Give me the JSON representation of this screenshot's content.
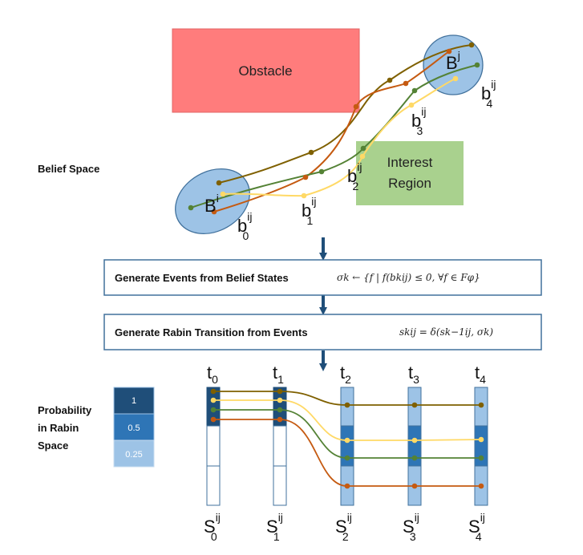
{
  "colors": {
    "obstacle": "#ff7c7c",
    "interest": "#a9d18e",
    "belief_ellipse": "#9dc3e6",
    "belief_stroke": "#41719c",
    "box_stroke": "#41719c",
    "arrow": "#1f4e79",
    "traj_brown": "#7f6000",
    "traj_orange": "#c55a11",
    "traj_green": "#548235",
    "traj_yellow": "#ffd966",
    "prob_high": "#1f4e79",
    "prob_mid": "#2e75b6",
    "prob_low": "#9dc3e6"
  },
  "labels": {
    "belief_space": "Belief Space",
    "obstacle": "Obstacle",
    "interest_line1": "Interest",
    "interest_line2": "Region",
    "Bi_base": "B",
    "Bi_sup": "i",
    "Bj_base": "B",
    "Bj_sup": "j",
    "b_base": "b",
    "b_sup": "ij",
    "b_subs": [
      "0",
      "1",
      "2",
      "3",
      "4"
    ],
    "prob_line1": "Probability",
    "prob_line2": "in Rabin",
    "prob_line3": "Space"
  },
  "steps": {
    "events_text": "Generate Events from Belief States",
    "events_formula": "σk ← {f | f(bkij) ≤ 0, ∀f ∈ Fφ}",
    "rabin_text": "Generate Rabin Transition from Events",
    "rabin_formula": "skij = δ(sk−1ij, σk)"
  },
  "legend": {
    "values": [
      "1",
      "0.5",
      "0.25"
    ]
  },
  "time": {
    "t_base": "t",
    "t_subs": [
      "0",
      "1",
      "2",
      "3",
      "4"
    ],
    "s_base": "S",
    "s_sup": "ij",
    "s_subs": [
      "0",
      "1",
      "2",
      "3",
      "4"
    ]
  }
}
